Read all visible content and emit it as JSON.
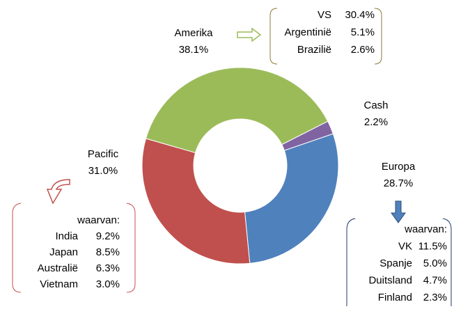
{
  "chart_data": {
    "type": "donut",
    "categories": [
      "Amerika",
      "Cash",
      "Europa",
      "Pacific"
    ],
    "values": [
      38.1,
      2.2,
      28.7,
      31.0
    ],
    "value_labels": [
      "38.1%",
      "2.2%",
      "28.7%",
      "31.0%"
    ],
    "colors": [
      "#9bbb59",
      "#8064a2",
      "#4f81bd",
      "#c0504d"
    ],
    "breakdowns": [
      {
        "items": [
          {
            "name": "VS",
            "label": "30.4%"
          },
          {
            "name": "Argentinië",
            "label": "5.1%"
          },
          {
            "name": "Brazilië",
            "label": "2.6%"
          }
        ]
      },
      {
        "header": "waarvan:",
        "items": [
          {
            "name": "VK",
            "label": "11.5%"
          },
          {
            "name": "Spanje",
            "label": "5.0%"
          },
          {
            "name": "Duitsland",
            "label": "4.7%"
          },
          {
            "name": "Finland",
            "label": "2.3%"
          }
        ]
      },
      {
        "header": "waarvan:",
        "items": [
          {
            "name": "India",
            "label": "9.2%"
          },
          {
            "name": "Japan",
            "label": "8.5%"
          },
          {
            "name": "Australië",
            "label": "6.3%"
          },
          {
            "name": "Vietnam",
            "label": "3.0%"
          }
        ]
      }
    ]
  }
}
